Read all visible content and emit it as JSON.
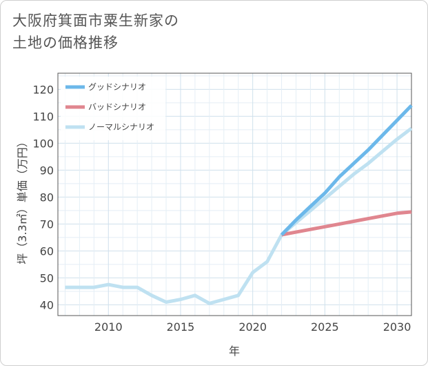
{
  "chart_data": {
    "type": "line",
    "title_line1": "大阪府箕面市粟生新家の",
    "title_line2": "土地の価格推移",
    "xlabel": "年",
    "ylabel": "坪（3.3㎡）単価（万円）",
    "xlim": [
      2006.5,
      2031
    ],
    "ylim": [
      36,
      126
    ],
    "xticks": [
      2010,
      2015,
      2020,
      2025,
      2030
    ],
    "yticks": [
      40,
      50,
      60,
      70,
      80,
      90,
      100,
      110,
      120
    ],
    "series": [
      {
        "name": "グッドシナリオ",
        "color": "#6cb8ea",
        "x": [
          2022,
          2023,
          2024,
          2025,
          2026,
          2027,
          2028,
          2029,
          2030,
          2031
        ],
        "y": [
          66,
          71.5,
          76.5,
          81.5,
          87.5,
          92.5,
          97.5,
          103,
          108.5,
          114
        ]
      },
      {
        "name": "バッドシナリオ",
        "color": "#e0868f",
        "x": [
          2022,
          2023,
          2024,
          2025,
          2026,
          2027,
          2028,
          2029,
          2030,
          2031
        ],
        "y": [
          66,
          67,
          68,
          69,
          70,
          71,
          72,
          73,
          74,
          74.5
        ]
      },
      {
        "name": "ノーマルシナリオ",
        "color": "#bfe1f1",
        "x": [
          2007,
          2008,
          2009,
          2010,
          2011,
          2012,
          2013,
          2014,
          2015,
          2016,
          2017,
          2018,
          2019,
          2020,
          2021,
          2022,
          2023,
          2024,
          2025,
          2026,
          2027,
          2028,
          2029,
          2030,
          2031
        ],
        "y": [
          46.5,
          46.5,
          46.5,
          47.5,
          46.5,
          46.5,
          43.5,
          41,
          42,
          43.5,
          40.5,
          42,
          43.5,
          52,
          56,
          66,
          70.5,
          75,
          79.5,
          84,
          88.5,
          92.5,
          97,
          101.5,
          105.5
        ]
      }
    ]
  }
}
